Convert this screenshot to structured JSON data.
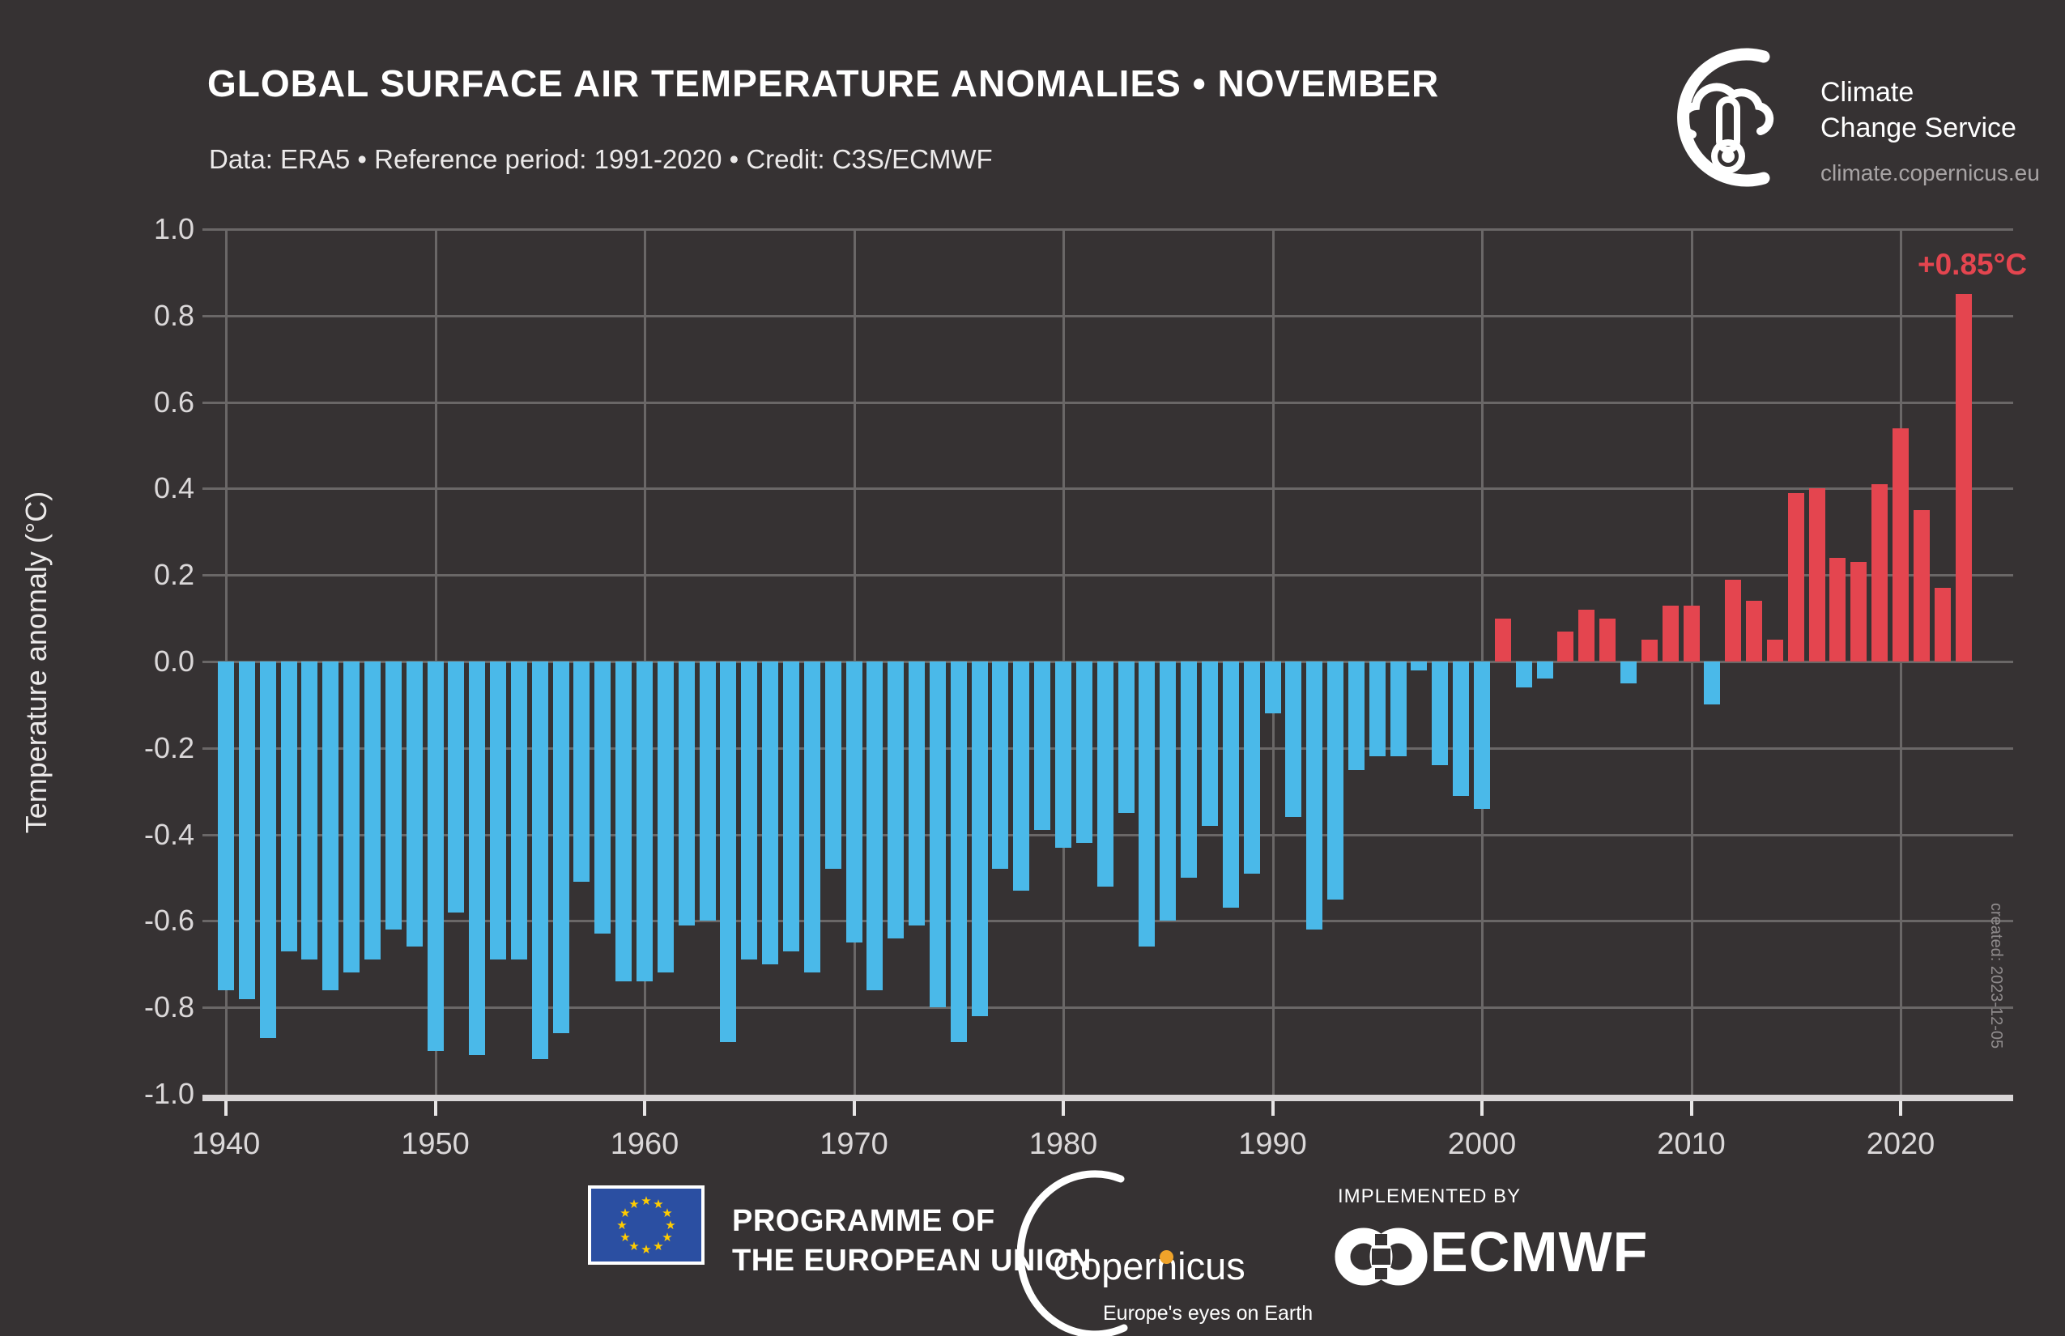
{
  "header": {
    "title": "GLOBAL SURFACE AIR TEMPERATURE ANOMALIES  •  NOVEMBER",
    "subtitle": "Data: ERA5  •  Reference period: 1991-2020  •  Credit: C3S/ECMWF"
  },
  "branding": {
    "name_line1": "Climate",
    "name_line2": "Change Service",
    "url": "climate.copernicus.eu"
  },
  "annotations": {
    "peak_label": "+0.85°C",
    "created_label": "created: 2023-12-05"
  },
  "footer": {
    "eu_label_line1": "PROGRAMME OF",
    "eu_label_line2": "THE EUROPEAN UNION",
    "copernicus_name": "Copernicus",
    "copernicus_tagline": "Europe's eyes on Earth",
    "ecmwf_prefix": "IMPLEMENTED BY",
    "ecmwf_name": "ECMWF"
  },
  "colors": {
    "background": "#363233",
    "bar_positive": "#e4454f",
    "bar_negative": "#4ab9e9",
    "gridline": "#6a6767",
    "axis_line": "#d9d6d7",
    "text_primary": "#ffffff",
    "text_secondary": "#dbd8d9",
    "accent_orange": "#f0a32a",
    "eu_blue": "#2b4fa2",
    "eu_star_yellow": "#ffcc00"
  },
  "chart_data": {
    "type": "bar",
    "title": "GLOBAL SURFACE AIR TEMPERATURE ANOMALIES • NOVEMBER",
    "xlabel": "",
    "ylabel": "Temperature anomaly (°C)",
    "ylim": [
      -1.0,
      1.0
    ],
    "grid": true,
    "legend_position": "none",
    "x": [
      1940,
      1941,
      1942,
      1943,
      1944,
      1945,
      1946,
      1947,
      1948,
      1949,
      1950,
      1951,
      1952,
      1953,
      1954,
      1955,
      1956,
      1957,
      1958,
      1959,
      1960,
      1961,
      1962,
      1963,
      1964,
      1965,
      1966,
      1967,
      1968,
      1969,
      1970,
      1971,
      1972,
      1973,
      1974,
      1975,
      1976,
      1977,
      1978,
      1979,
      1980,
      1981,
      1982,
      1983,
      1984,
      1985,
      1986,
      1987,
      1988,
      1989,
      1990,
      1991,
      1992,
      1993,
      1994,
      1995,
      1996,
      1997,
      1998,
      1999,
      2000,
      2001,
      2002,
      2003,
      2004,
      2005,
      2006,
      2007,
      2008,
      2009,
      2010,
      2011,
      2012,
      2013,
      2014,
      2015,
      2016,
      2017,
      2018,
      2019,
      2020,
      2021,
      2022,
      2023
    ],
    "values": [
      -0.76,
      -0.78,
      -0.87,
      -0.67,
      -0.69,
      -0.76,
      -0.72,
      -0.69,
      -0.62,
      -0.66,
      -0.9,
      -0.58,
      -0.91,
      -0.69,
      -0.69,
      -0.92,
      -0.86,
      -0.51,
      -0.63,
      -0.74,
      -0.74,
      -0.72,
      -0.61,
      -0.6,
      -0.88,
      -0.69,
      -0.7,
      -0.67,
      -0.72,
      -0.48,
      -0.65,
      -0.76,
      -0.64,
      -0.61,
      -0.8,
      -0.88,
      -0.82,
      -0.48,
      -0.53,
      -0.39,
      -0.43,
      -0.42,
      -0.52,
      -0.35,
      -0.66,
      -0.6,
      -0.5,
      -0.38,
      -0.57,
      -0.49,
      -0.12,
      -0.36,
      -0.62,
      -0.55,
      -0.25,
      -0.22,
      -0.22,
      -0.02,
      -0.24,
      -0.31,
      -0.34,
      0.1,
      -0.06,
      -0.04,
      0.07,
      0.12,
      0.1,
      -0.05,
      0.05,
      0.13,
      0.13,
      -0.1,
      0.19,
      0.14,
      0.05,
      0.39,
      0.4,
      0.24,
      0.23,
      0.41,
      0.54,
      0.35,
      0.17,
      0.85
    ],
    "xticks": [
      1940,
      1950,
      1960,
      1970,
      1980,
      1990,
      2000,
      2010,
      2020
    ],
    "ytick_values": [
      1.0,
      0.8,
      0.6,
      0.4,
      0.2,
      0.0,
      -0.2,
      -0.4,
      -0.6,
      -0.8,
      -1.0
    ],
    "ytick_labels": [
      "1.0",
      "0.8",
      "0.6",
      "0.4",
      "0.2",
      "0.0",
      "-0.2",
      "-0.4",
      "-0.6",
      "-0.8",
      "-1.0"
    ],
    "gridline_values": [
      1.0,
      0.8,
      0.6,
      0.4,
      0.2,
      0.0,
      -0.2,
      -0.4,
      -0.6,
      -0.8
    ],
    "annotation": {
      "year": 2023,
      "label": "+0.85°C"
    }
  }
}
